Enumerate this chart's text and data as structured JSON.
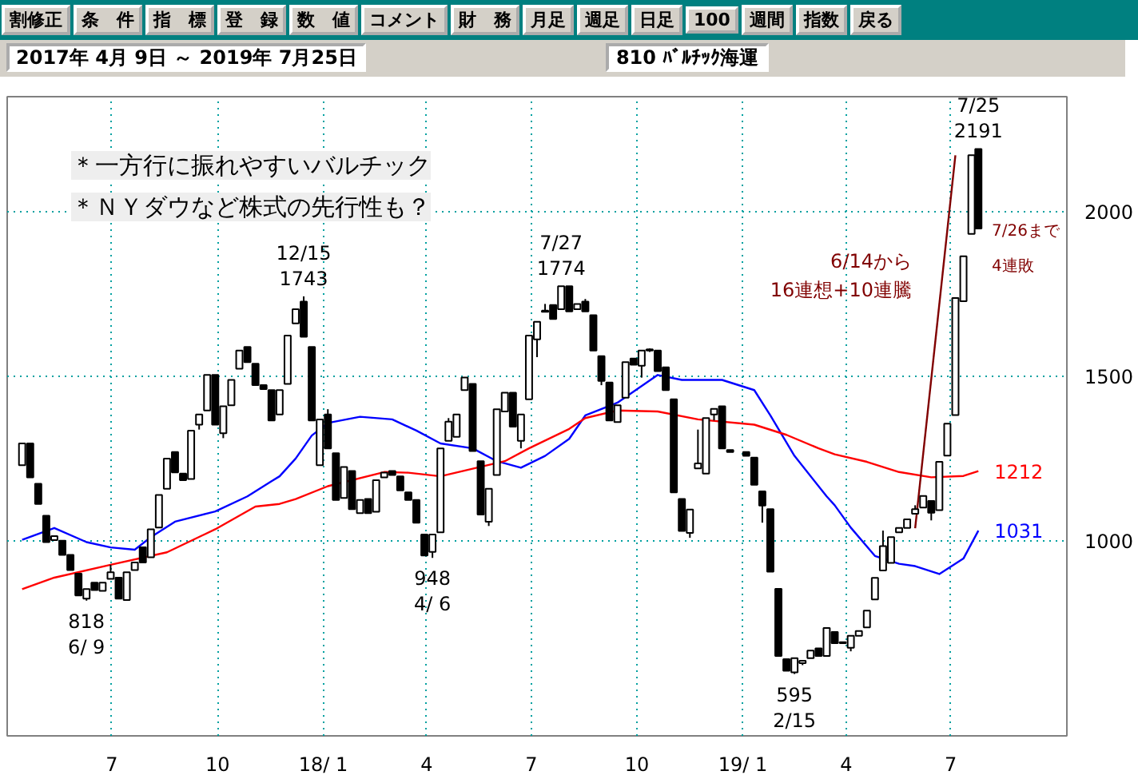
{
  "chart_data": {
    "type": "candlestick",
    "title": "810 ﾊﾞﾙﾁｯｸ海運",
    "subtitle": "2017年 4月 9日 ～ 2019年 7月25日",
    "x": [
      "2017-04-14",
      "2017-04-21",
      "2017-04-28",
      "2017-05-05",
      "2017-05-12",
      "2017-05-19",
      "2017-05-26",
      "2017-06-02",
      "2017-06-09",
      "2017-06-16",
      "2017-06-23",
      "2017-06-30",
      "2017-07-07",
      "2017-07-14",
      "2017-07-21",
      "2017-07-28",
      "2017-08-04",
      "2017-08-11",
      "2017-08-18",
      "2017-08-25",
      "2017-09-01",
      "2017-09-08",
      "2017-09-15",
      "2017-09-22",
      "2017-09-29",
      "2017-10-06",
      "2017-10-13",
      "2017-10-20",
      "2017-10-27",
      "2017-11-03",
      "2017-11-10",
      "2017-11-17",
      "2017-11-24",
      "2017-12-01",
      "2017-12-08",
      "2017-12-15",
      "2017-12-22",
      "2017-12-29",
      "2018-01-05",
      "2018-01-12",
      "2018-01-19",
      "2018-01-26",
      "2018-02-02",
      "2018-02-09",
      "2018-02-16",
      "2018-02-23",
      "2018-03-02",
      "2018-03-09",
      "2018-03-16",
      "2018-03-23",
      "2018-03-30",
      "2018-04-06",
      "2018-04-13",
      "2018-04-20",
      "2018-04-27",
      "2018-05-04",
      "2018-05-11",
      "2018-05-18",
      "2018-05-25",
      "2018-06-01",
      "2018-06-08",
      "2018-06-15",
      "2018-06-22",
      "2018-06-29",
      "2018-07-06",
      "2018-07-13",
      "2018-07-20",
      "2018-07-27",
      "2018-08-03",
      "2018-08-10",
      "2018-08-17",
      "2018-08-24",
      "2018-08-31",
      "2018-09-07",
      "2018-09-14",
      "2018-09-21",
      "2018-09-28",
      "2018-10-05",
      "2018-10-12",
      "2018-10-19",
      "2018-10-26",
      "2018-11-02",
      "2018-11-09",
      "2018-11-16",
      "2018-11-23",
      "2018-11-30",
      "2018-12-07",
      "2018-12-14",
      "2018-12-21",
      "2019-01-04",
      "2019-01-11",
      "2019-01-18",
      "2019-01-25",
      "2019-02-01",
      "2019-02-08",
      "2019-02-15",
      "2019-02-22",
      "2019-03-01",
      "2019-03-08",
      "2019-03-15",
      "2019-03-22",
      "2019-03-29",
      "2019-04-05",
      "2019-04-12",
      "2019-04-19",
      "2019-04-26",
      "2019-05-03",
      "2019-05-10",
      "2019-05-17",
      "2019-05-24",
      "2019-05-31",
      "2019-06-07",
      "2019-06-14",
      "2019-06-21",
      "2019-06-28",
      "2019-07-05",
      "2019-07-12",
      "2019-07-19",
      "2019-07-25"
    ],
    "ohlc": [
      [
        1230,
        1296,
        1230,
        1296
      ],
      [
        1296,
        1296,
        1193,
        1193
      ],
      [
        1173,
        1173,
        1112,
        1112
      ],
      [
        1076,
        1076,
        996,
        996
      ],
      [
        1002,
        1014,
        1002,
        1014
      ],
      [
        1000,
        1000,
        957,
        957
      ],
      [
        957,
        957,
        911,
        911
      ],
      [
        900,
        900,
        834,
        834
      ],
      [
        824,
        853,
        818,
        853
      ],
      [
        873,
        873,
        850,
        850
      ],
      [
        848,
        873,
        848,
        873
      ],
      [
        884,
        927,
        884,
        904
      ],
      [
        888,
        888,
        824,
        824
      ],
      [
        820,
        904,
        820,
        904
      ],
      [
        911,
        934,
        911,
        934
      ],
      [
        980,
        980,
        934,
        934
      ],
      [
        950,
        1035,
        950,
        1035
      ],
      [
        1040,
        1139,
        1040,
        1139
      ],
      [
        1158,
        1250,
        1158,
        1250
      ],
      [
        1270,
        1270,
        1208,
        1208
      ],
      [
        1204,
        1204,
        1184,
        1184
      ],
      [
        1188,
        1335,
        1188,
        1335
      ],
      [
        1353,
        1384,
        1338,
        1384
      ],
      [
        1396,
        1504,
        1396,
        1504
      ],
      [
        1504,
        1504,
        1353,
        1353
      ],
      [
        1327,
        1409,
        1312,
        1409
      ],
      [
        1412,
        1489,
        1412,
        1489
      ],
      [
        1523,
        1578,
        1523,
        1578
      ],
      [
        1589,
        1589,
        1543,
        1543
      ],
      [
        1538,
        1538,
        1473,
        1473
      ],
      [
        1473,
        1473,
        1461,
        1461
      ],
      [
        1458,
        1458,
        1366,
        1366
      ],
      [
        1384,
        1458,
        1384,
        1458
      ],
      [
        1477,
        1624,
        1477,
        1624
      ],
      [
        1661,
        1704,
        1661,
        1704
      ],
      [
        1727,
        1743,
        1620,
        1620
      ],
      [
        1589,
        1589,
        1366,
        1366
      ],
      [
        1230,
        1369,
        1230,
        1369
      ],
      [
        1384,
        1400,
        1281,
        1281
      ],
      [
        1266,
        1266,
        1124,
        1124
      ],
      [
        1130,
        1224,
        1130,
        1224
      ],
      [
        1212,
        1212,
        1096,
        1096
      ],
      [
        1084,
        1124,
        1084,
        1124
      ],
      [
        1127,
        1127,
        1084,
        1084
      ],
      [
        1088,
        1184,
        1088,
        1184
      ],
      [
        1193,
        1207,
        1193,
        1207
      ],
      [
        1212,
        1212,
        1200,
        1200
      ],
      [
        1196,
        1196,
        1153,
        1153
      ],
      [
        1147,
        1147,
        1124,
        1124
      ],
      [
        1124,
        1124,
        1055,
        1055
      ],
      [
        1019,
        1019,
        955,
        955
      ],
      [
        966,
        1019,
        948,
        1019
      ],
      [
        1026,
        1281,
        1026,
        1281
      ],
      [
        1304,
        1373,
        1304,
        1362
      ],
      [
        1316,
        1384,
        1316,
        1384
      ],
      [
        1458,
        1496,
        1458,
        1496
      ],
      [
        1477,
        1477,
        1273,
        1273
      ],
      [
        1242,
        1242,
        1080,
        1080
      ],
      [
        1058,
        1158,
        1045,
        1158
      ],
      [
        1200,
        1400,
        1200,
        1400
      ],
      [
        1393,
        1450,
        1393,
        1450
      ],
      [
        1450,
        1450,
        1347,
        1347
      ],
      [
        1304,
        1384,
        1281,
        1384
      ],
      [
        1430,
        1624,
        1430,
        1624
      ],
      [
        1612,
        1666,
        1558,
        1666
      ],
      [
        1696,
        1720,
        1696,
        1700
      ],
      [
        1717,
        1717,
        1674,
        1674
      ],
      [
        1704,
        1774,
        1704,
        1774
      ],
      [
        1774,
        1774,
        1697,
        1697
      ],
      [
        1704,
        1720,
        1704,
        1720
      ],
      [
        1727,
        1735,
        1697,
        1697
      ],
      [
        1686,
        1686,
        1578,
        1578
      ],
      [
        1561,
        1561,
        1473,
        1486
      ],
      [
        1481,
        1481,
        1366,
        1366
      ],
      [
        1361,
        1412,
        1361,
        1412
      ],
      [
        1435,
        1543,
        1435,
        1543
      ],
      [
        1554,
        1554,
        1535,
        1535
      ],
      [
        1532,
        1578,
        1496,
        1578
      ],
      [
        1578,
        1585,
        1574,
        1582
      ],
      [
        1578,
        1578,
        1516,
        1516
      ],
      [
        1527,
        1527,
        1458,
        1458
      ],
      [
        1430,
        1430,
        1147,
        1147
      ],
      [
        1127,
        1127,
        1030,
        1030
      ],
      [
        1024,
        1095,
        1009,
        1095
      ],
      [
        1220,
        1338,
        1220,
        1235
      ],
      [
        1204,
        1373,
        1204,
        1373
      ],
      [
        1384,
        1401,
        1366,
        1401
      ],
      [
        1409,
        1409,
        1281,
        1281
      ],
      [
        1276,
        1276,
        1270,
        1270
      ],
      [
        1270,
        1270,
        1258,
        1258
      ],
      [
        1253,
        1253,
        1170,
        1170
      ],
      [
        1150,
        1150,
        1055,
        1107
      ],
      [
        1096,
        1096,
        906,
        906
      ],
      [
        854,
        854,
        650,
        650
      ],
      [
        640,
        640,
        605,
        605
      ],
      [
        600,
        643,
        595,
        643
      ],
      [
        628,
        635,
        622,
        635
      ],
      [
        643,
        666,
        643,
        666
      ],
      [
        673,
        673,
        650,
        650
      ],
      [
        650,
        735,
        650,
        735
      ],
      [
        723,
        723,
        689,
        689
      ],
      [
        689,
        692,
        689,
        692
      ],
      [
        675,
        711,
        664,
        711
      ],
      [
        711,
        726,
        711,
        726
      ],
      [
        737,
        788,
        737,
        788
      ],
      [
        822,
        887,
        822,
        887
      ],
      [
        910,
        1031,
        910,
        984
      ],
      [
        933,
        1011,
        933,
        1011
      ],
      [
        1026,
        1039,
        1026,
        1039
      ],
      [
        1039,
        1065,
        1039,
        1065
      ],
      [
        1082,
        1108,
        1082,
        1096
      ],
      [
        1101,
        1136,
        1101,
        1136
      ],
      [
        1121,
        1121,
        1062,
        1085
      ],
      [
        1093,
        1240,
        1093,
        1240
      ],
      [
        1259,
        1356,
        1259,
        1356
      ],
      [
        1382,
        1738,
        1382,
        1738
      ],
      [
        1728,
        1865,
        1728,
        1865
      ],
      [
        1933,
        2172,
        1933,
        2172
      ],
      [
        2191,
        2191,
        1949,
        1949
      ]
    ],
    "series": [
      {
        "type": "line",
        "color": "#0000ff",
        "x": [
          "2017-04-14",
          "2017-05-12",
          "2017-06-09",
          "2017-06-30",
          "2017-07-21",
          "2017-08-04",
          "2017-08-25",
          "2017-09-29",
          "2017-10-27",
          "2017-11-17",
          "2017-11-24",
          "2017-12-08",
          "2017-12-22",
          "2018-01-05",
          "2018-02-02",
          "2018-03-02",
          "2018-03-23",
          "2018-04-13",
          "2018-05-11",
          "2018-06-01",
          "2018-06-22",
          "2018-07-13",
          "2018-08-03",
          "2018-08-17",
          "2018-09-14",
          "2018-10-19",
          "2018-11-09",
          "2018-12-14",
          "2019-01-11",
          "2019-01-25",
          "2019-02-15",
          "2019-03-15",
          "2019-03-22",
          "2019-04-05",
          "2019-04-26",
          "2019-05-17",
          "2019-05-31",
          "2019-06-21",
          "2019-07-12",
          "2019-07-25"
        ],
        "values": [
          1003,
          1039,
          996,
          980,
          973,
          1011,
          1058,
          1089,
          1135,
          1181,
          1196,
          1250,
          1320,
          1358,
          1377,
          1369,
          1335,
          1296,
          1281,
          1242,
          1222,
          1258,
          1310,
          1381,
          1420,
          1504,
          1489,
          1489,
          1458,
          1381,
          1258,
          1135,
          1108,
          1040,
          954,
          930,
          923,
          899,
          946,
          1031
        ],
        "value_labels": [
          null,
          null,
          null,
          null,
          null,
          null,
          null,
          null,
          null,
          null,
          null,
          null,
          null,
          null,
          null,
          null,
          null,
          null,
          null,
          null,
          null,
          null,
          null,
          null,
          null,
          null,
          null,
          null,
          null,
          null,
          null,
          null,
          null,
          null,
          null,
          null,
          null,
          null,
          null,
          "1031"
        ]
      },
      {
        "type": "line",
        "color": "#ff0000",
        "x": [
          "2017-04-14",
          "2017-05-12",
          "2017-06-30",
          "2017-08-18",
          "2017-09-29",
          "2017-11-03",
          "2017-11-24",
          "2017-12-08",
          "2018-01-05",
          "2018-02-23",
          "2018-03-16",
          "2018-04-13",
          "2018-05-11",
          "2018-06-08",
          "2018-06-29",
          "2018-08-03",
          "2018-08-17",
          "2018-09-14",
          "2018-10-19",
          "2018-11-23",
          "2019-01-11",
          "2019-02-08",
          "2019-03-08",
          "2019-03-22",
          "2019-04-19",
          "2019-05-17",
          "2019-06-14",
          "2019-07-12",
          "2019-07-25"
        ],
        "values": [
          853,
          888,
          927,
          965,
          1035,
          1104,
          1112,
          1127,
          1166,
          1209,
          1207,
          1196,
          1219,
          1242,
          1281,
          1340,
          1373,
          1396,
          1393,
          1369,
          1353,
          1322,
          1281,
          1263,
          1240,
          1209,
          1193,
          1197,
          1212
        ],
        "value_labels": [
          null,
          null,
          null,
          null,
          null,
          null,
          null,
          null,
          null,
          null,
          null,
          null,
          null,
          null,
          null,
          null,
          null,
          null,
          null,
          null,
          null,
          null,
          null,
          null,
          null,
          null,
          null,
          null,
          "1212"
        ]
      },
      {
        "type": "line",
        "color": "#800000",
        "x": [
          "2019-05-31",
          "2019-07-05"
        ],
        "values": [
          1038,
          2172
        ]
      }
    ],
    "xlim": [
      "2017-04-01",
      "2019-10-10"
    ],
    "ylim": [
      407,
      2350
    ],
    "xticks": [
      {
        "value": "2017-07-01",
        "label": "7"
      },
      {
        "value": "2017-10-01",
        "label": "10"
      },
      {
        "value": "2018-01-01",
        "label": "18/ 1"
      },
      {
        "value": "2018-04-01",
        "label": "4"
      },
      {
        "value": "2018-07-01",
        "label": "7"
      },
      {
        "value": "2018-10-01",
        "label": "10"
      },
      {
        "value": "2019-01-01",
        "label": "19/ 1"
      },
      {
        "value": "2019-04-01",
        "label": "4"
      },
      {
        "value": "2019-07-01",
        "label": "7"
      }
    ],
    "yticks": [
      1000,
      1500,
      2000
    ],
    "grid": true,
    "annotations": [
      "割修正",
      "条　件",
      "指　標",
      "登　録",
      "数　値",
      "コメント",
      "財　務",
      "月足",
      "週足",
      "日足",
      "100",
      "週間",
      "指数",
      "戻る",
      "＊一方行に振れやすいバルチック",
      "＊ＮＹダウなど株式の先行性も？",
      "6/14から",
      "16連想+10連騰",
      "7/26まで",
      "4連敗",
      {
        "text": "818\n6/ 9",
        "x": "2017-06-09",
        "y": 818
      },
      {
        "text": "12/15\n1743",
        "x": "2017-12-15",
        "y": 1743
      },
      {
        "text": "948\n4/ 6",
        "x": "2018-04-06",
        "y": 948
      },
      {
        "text": "7/27\n1774",
        "x": "2018-07-27",
        "y": 1774
      },
      {
        "text": "595\n2/15",
        "x": "2019-02-15",
        "y": 595
      },
      {
        "text": "7/25\n2191",
        "x": "2019-07-25",
        "y": 2191
      }
    ]
  }
}
